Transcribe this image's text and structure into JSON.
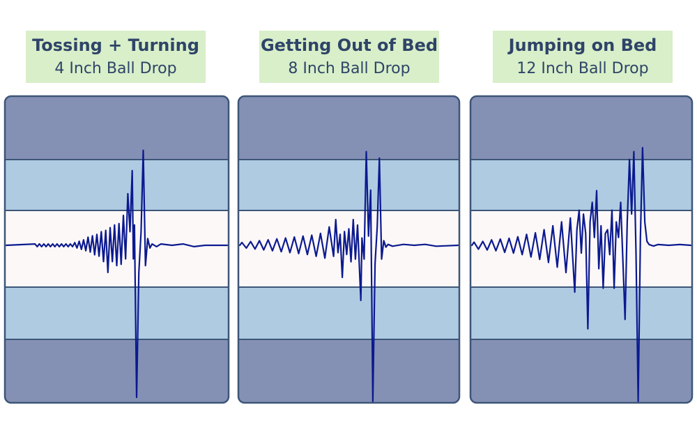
{
  "colors": {
    "band_outer": "#8491b4",
    "band_middle": "#aecbe2",
    "band_center": "#fdf8f8",
    "border": "#3d5577",
    "line": "#0b1a8f",
    "label_bg": "#d8efc9",
    "label_text": "#2f4468"
  },
  "panels": [
    {
      "title": "Tossing + Turning",
      "subtitle": "4 Inch Ball Drop"
    },
    {
      "title": "Getting Out of Bed",
      "subtitle": "8 Inch Ball Drop"
    },
    {
      "title": "Jumping on Bed",
      "subtitle": "12 Inch Ball Drop"
    }
  ],
  "chart_data": [
    {
      "type": "line",
      "title": "Tossing + Turning",
      "subtitle": "4 Inch Ball Drop",
      "ylim": [
        -1.15,
        1.15
      ],
      "series": [
        {
          "points": [
            [
              0.0,
              0
            ],
            [
              0.13,
              0.01
            ],
            [
              0.14,
              -0.01
            ],
            [
              0.15,
              0.01
            ],
            [
              0.16,
              -0.01
            ],
            [
              0.17,
              0.01
            ],
            [
              0.18,
              -0.01
            ],
            [
              0.19,
              0.01
            ],
            [
              0.2,
              -0.01
            ],
            [
              0.21,
              0.01
            ],
            [
              0.22,
              -0.01
            ],
            [
              0.23,
              0.01
            ],
            [
              0.24,
              -0.01
            ],
            [
              0.25,
              0.01
            ],
            [
              0.26,
              -0.01
            ],
            [
              0.27,
              0.01
            ],
            [
              0.28,
              -0.01
            ],
            [
              0.29,
              0.01
            ],
            [
              0.3,
              -0.01
            ],
            [
              0.31,
              0.02
            ],
            [
              0.32,
              -0.02
            ],
            [
              0.33,
              0.03
            ],
            [
              0.34,
              -0.03
            ],
            [
              0.35,
              0.04
            ],
            [
              0.36,
              -0.04
            ],
            [
              0.37,
              0.06
            ],
            [
              0.38,
              -0.05
            ],
            [
              0.39,
              0.07
            ],
            [
              0.4,
              -0.07
            ],
            [
              0.41,
              0.08
            ],
            [
              0.42,
              -0.08
            ],
            [
              0.43,
              0.1
            ],
            [
              0.44,
              -0.12
            ],
            [
              0.45,
              0.11
            ],
            [
              0.46,
              -0.2
            ],
            [
              0.47,
              0.13
            ],
            [
              0.48,
              -0.12
            ],
            [
              0.49,
              0.15
            ],
            [
              0.5,
              -0.15
            ],
            [
              0.51,
              0.16
            ],
            [
              0.52,
              -0.14
            ],
            [
              0.53,
              0.22
            ],
            [
              0.54,
              -0.1
            ],
            [
              0.55,
              0.38
            ],
            [
              0.56,
              0.1
            ],
            [
              0.57,
              0.55
            ],
            [
              0.575,
              -0.1
            ],
            [
              0.58,
              0.15
            ],
            [
              0.59,
              -1.12
            ],
            [
              0.6,
              -0.2
            ],
            [
              0.61,
              0.1
            ],
            [
              0.62,
              0.7
            ],
            [
              0.63,
              -0.15
            ],
            [
              0.64,
              0.05
            ],
            [
              0.65,
              -0.02
            ],
            [
              0.66,
              0.01
            ],
            [
              0.68,
              -0.01
            ],
            [
              0.7,
              0.01
            ],
            [
              0.75,
              0.0
            ],
            [
              0.8,
              0.01
            ],
            [
              0.85,
              -0.01
            ],
            [
              0.9,
              0.0
            ],
            [
              1.0,
              0.0
            ]
          ]
        }
      ]
    },
    {
      "type": "line",
      "title": "Getting Out of Bed",
      "subtitle": "8 Inch Ball Drop",
      "ylim": [
        -1.7,
        1.7
      ],
      "series": [
        {
          "points": [
            [
              0.0,
              0
            ],
            [
              0.01,
              0.03
            ],
            [
              0.03,
              -0.03
            ],
            [
              0.05,
              0.04
            ],
            [
              0.07,
              -0.04
            ],
            [
              0.09,
              0.05
            ],
            [
              0.11,
              -0.05
            ],
            [
              0.13,
              0.06
            ],
            [
              0.15,
              -0.06
            ],
            [
              0.17,
              0.07
            ],
            [
              0.19,
              -0.07
            ],
            [
              0.21,
              0.08
            ],
            [
              0.23,
              -0.08
            ],
            [
              0.25,
              0.09
            ],
            [
              0.27,
              -0.09
            ],
            [
              0.29,
              0.1
            ],
            [
              0.31,
              -0.1
            ],
            [
              0.33,
              0.11
            ],
            [
              0.35,
              -0.12
            ],
            [
              0.37,
              0.13
            ],
            [
              0.39,
              -0.14
            ],
            [
              0.41,
              0.2
            ],
            [
              0.43,
              -0.12
            ],
            [
              0.44,
              0.28
            ],
            [
              0.45,
              -0.08
            ],
            [
              0.46,
              0.12
            ],
            [
              0.47,
              -0.35
            ],
            [
              0.48,
              0.15
            ],
            [
              0.49,
              -0.1
            ],
            [
              0.5,
              0.18
            ],
            [
              0.51,
              -0.18
            ],
            [
              0.52,
              0.28
            ],
            [
              0.53,
              -0.15
            ],
            [
              0.54,
              0.22
            ],
            [
              0.555,
              -0.6
            ],
            [
              0.56,
              0.08
            ],
            [
              0.57,
              -0.15
            ],
            [
              0.58,
              1.02
            ],
            [
              0.59,
              0.1
            ],
            [
              0.6,
              0.6
            ],
            [
              0.61,
              -1.7
            ],
            [
              0.62,
              -0.2
            ],
            [
              0.63,
              0.2
            ],
            [
              0.64,
              0.95
            ],
            [
              0.65,
              -0.15
            ],
            [
              0.66,
              0.05
            ],
            [
              0.67,
              -0.02
            ],
            [
              0.68,
              0.01
            ],
            [
              0.7,
              -0.01
            ],
            [
              0.75,
              0.01
            ],
            [
              0.8,
              0.0
            ],
            [
              0.85,
              0.01
            ],
            [
              0.9,
              -0.01
            ],
            [
              1.0,
              0.0
            ]
          ]
        }
      ]
    },
    {
      "type": "line",
      "title": "Jumping on Bed",
      "subtitle": "12 Inch Ball Drop",
      "ylim": [
        -2.0,
        2.0
      ],
      "series": [
        {
          "points": [
            [
              0.0,
              0
            ],
            [
              0.01,
              0.04
            ],
            [
              0.03,
              -0.05
            ],
            [
              0.05,
              0.05
            ],
            [
              0.07,
              -0.06
            ],
            [
              0.09,
              0.07
            ],
            [
              0.11,
              -0.07
            ],
            [
              0.13,
              0.08
            ],
            [
              0.15,
              -0.09
            ],
            [
              0.17,
              0.09
            ],
            [
              0.19,
              -0.1
            ],
            [
              0.21,
              0.11
            ],
            [
              0.23,
              -0.12
            ],
            [
              0.25,
              0.14
            ],
            [
              0.27,
              -0.15
            ],
            [
              0.29,
              0.16
            ],
            [
              0.31,
              -0.18
            ],
            [
              0.33,
              0.2
            ],
            [
              0.35,
              -0.22
            ],
            [
              0.37,
              0.25
            ],
            [
              0.39,
              -0.28
            ],
            [
              0.41,
              0.3
            ],
            [
              0.43,
              -0.35
            ],
            [
              0.45,
              0.35
            ],
            [
              0.47,
              -0.6
            ],
            [
              0.48,
              0.2
            ],
            [
              0.49,
              0.45
            ],
            [
              0.5,
              -0.1
            ],
            [
              0.51,
              0.4
            ],
            [
              0.52,
              0.15
            ],
            [
              0.53,
              -1.07
            ],
            [
              0.54,
              0.3
            ],
            [
              0.55,
              0.55
            ],
            [
              0.56,
              0.1
            ],
            [
              0.57,
              0.7
            ],
            [
              0.58,
              -0.3
            ],
            [
              0.59,
              0.25
            ],
            [
              0.6,
              -0.55
            ],
            [
              0.61,
              0.15
            ],
            [
              0.62,
              0.2
            ],
            [
              0.63,
              -0.12
            ],
            [
              0.64,
              0.45
            ],
            [
              0.65,
              -0.55
            ],
            [
              0.66,
              0.3
            ],
            [
              0.67,
              0.1
            ],
            [
              0.68,
              0.55
            ],
            [
              0.69,
              -0.2
            ],
            [
              0.7,
              -0.95
            ],
            [
              0.71,
              0.3
            ],
            [
              0.72,
              1.1
            ],
            [
              0.73,
              0.4
            ],
            [
              0.74,
              1.2
            ],
            [
              0.75,
              -0.1
            ],
            [
              0.76,
              -2.0
            ],
            [
              0.77,
              0.1
            ],
            [
              0.78,
              1.25
            ],
            [
              0.79,
              0.3
            ],
            [
              0.8,
              0.05
            ],
            [
              0.81,
              0.01
            ],
            [
              0.83,
              -0.01
            ],
            [
              0.85,
              0.01
            ],
            [
              0.9,
              0.0
            ],
            [
              0.95,
              0.01
            ],
            [
              1.0,
              0.0
            ]
          ]
        }
      ]
    }
  ]
}
